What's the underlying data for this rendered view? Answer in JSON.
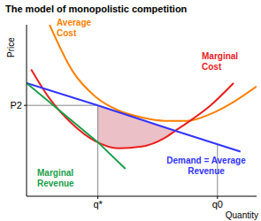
{
  "chart_data": {
    "type": "line",
    "title": "The model of monopolistic competition",
    "x_label": "Quantity",
    "y_label": "Price",
    "xlim": [
      0,
      10
    ],
    "ylim": [
      0,
      10
    ],
    "xticks": [
      {
        "value": 3.1,
        "label": "q*"
      },
      {
        "value": 8.3,
        "label": "q0"
      }
    ],
    "yticks": [
      {
        "value": 5.3,
        "label": "P2"
      }
    ],
    "grid": false,
    "series": [
      {
        "name": "Average Cost",
        "color": "#ff8000",
        "x": [
          1,
          2,
          3,
          4,
          5,
          6,
          7,
          8,
          9,
          10
        ],
        "values": [
          10,
          7.3,
          5.8,
          5.0,
          4.6,
          4.4,
          4.4,
          4.8,
          5.5,
          6.4
        ]
      },
      {
        "name": "Marginal Cost",
        "color": "#e8201e",
        "x": [
          0.2,
          1,
          2,
          3,
          4,
          5,
          6,
          6.5,
          7,
          8,
          9
        ],
        "values": [
          7.4,
          5.7,
          4.2,
          3.2,
          2.8,
          2.9,
          3.4,
          3.85,
          4.3,
          5.3,
          6.6
        ]
      },
      {
        "name": "Demand = Average Revenue",
        "color": "#3333ff",
        "x": [
          0,
          3.1,
          6.5,
          9.3
        ],
        "values": [
          6.6,
          5.3,
          3.8,
          2.6
        ]
      },
      {
        "name": "Marginal Revenue",
        "color": "#1a9e4a",
        "x": [
          0,
          3.1,
          4.3
        ],
        "values": [
          6.6,
          3.15,
          1.6
        ]
      }
    ],
    "shaded_region": {
      "color": "#e6b0b8",
      "x": [
        3.1,
        4,
        5,
        6,
        6.5
      ],
      "upper": [
        5.3,
        4.9,
        4.5,
        4.0,
        3.8
      ],
      "lower": [
        3.15,
        2.8,
        2.9,
        3.4,
        3.8
      ]
    }
  }
}
